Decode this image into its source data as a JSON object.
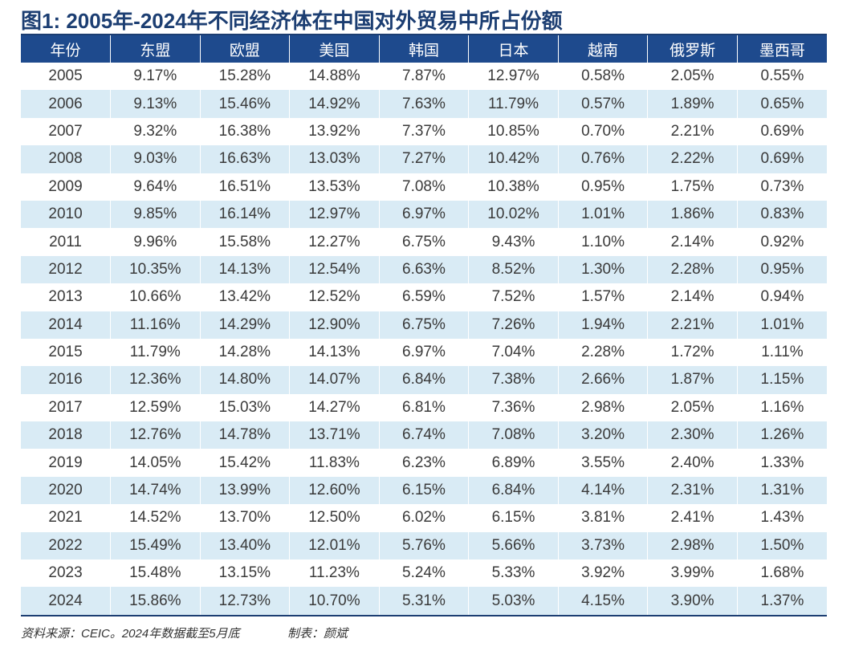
{
  "chart_data": {
    "type": "table",
    "title": "图1: 2005年-2024年不同经济体在中国对外贸易中所占份额",
    "columns": [
      "年份",
      "东盟",
      "欧盟",
      "美国",
      "韩国",
      "日本",
      "越南",
      "俄罗斯",
      "墨西哥"
    ],
    "rows": [
      [
        "2005",
        "9.17%",
        "15.28%",
        "14.88%",
        "7.87%",
        "12.97%",
        "0.58%",
        "2.05%",
        "0.55%"
      ],
      [
        "2006",
        "9.13%",
        "15.46%",
        "14.92%",
        "7.63%",
        "11.79%",
        "0.57%",
        "1.89%",
        "0.65%"
      ],
      [
        "2007",
        "9.32%",
        "16.38%",
        "13.92%",
        "7.37%",
        "10.85%",
        "0.70%",
        "2.21%",
        "0.69%"
      ],
      [
        "2008",
        "9.03%",
        "16.63%",
        "13.03%",
        "7.27%",
        "10.42%",
        "0.76%",
        "2.22%",
        "0.69%"
      ],
      [
        "2009",
        "9.64%",
        "16.51%",
        "13.53%",
        "7.08%",
        "10.38%",
        "0.95%",
        "1.75%",
        "0.73%"
      ],
      [
        "2010",
        "9.85%",
        "16.14%",
        "12.97%",
        "6.97%",
        "10.02%",
        "1.01%",
        "1.86%",
        "0.83%"
      ],
      [
        "2011",
        "9.96%",
        "15.58%",
        "12.27%",
        "6.75%",
        "9.43%",
        "1.10%",
        "2.14%",
        "0.92%"
      ],
      [
        "2012",
        "10.35%",
        "14.13%",
        "12.54%",
        "6.63%",
        "8.52%",
        "1.30%",
        "2.28%",
        "0.95%"
      ],
      [
        "2013",
        "10.66%",
        "13.42%",
        "12.52%",
        "6.59%",
        "7.52%",
        "1.57%",
        "2.14%",
        "0.94%"
      ],
      [
        "2014",
        "11.16%",
        "14.29%",
        "12.90%",
        "6.75%",
        "7.26%",
        "1.94%",
        "2.21%",
        "1.01%"
      ],
      [
        "2015",
        "11.79%",
        "14.28%",
        "14.13%",
        "6.97%",
        "7.04%",
        "2.28%",
        "1.72%",
        "1.11%"
      ],
      [
        "2016",
        "12.36%",
        "14.80%",
        "14.07%",
        "6.84%",
        "7.38%",
        "2.66%",
        "1.87%",
        "1.15%"
      ],
      [
        "2017",
        "12.59%",
        "15.03%",
        "14.27%",
        "6.81%",
        "7.36%",
        "2.98%",
        "2.05%",
        "1.16%"
      ],
      [
        "2018",
        "12.76%",
        "14.78%",
        "13.71%",
        "6.74%",
        "7.08%",
        "3.20%",
        "2.30%",
        "1.26%"
      ],
      [
        "2019",
        "14.05%",
        "15.42%",
        "11.83%",
        "6.23%",
        "6.89%",
        "3.55%",
        "2.40%",
        "1.33%"
      ],
      [
        "2020",
        "14.74%",
        "13.99%",
        "12.60%",
        "6.15%",
        "6.84%",
        "4.14%",
        "2.31%",
        "1.31%"
      ],
      [
        "2021",
        "14.52%",
        "13.70%",
        "12.50%",
        "6.02%",
        "6.15%",
        "3.81%",
        "2.41%",
        "1.43%"
      ],
      [
        "2022",
        "15.49%",
        "13.40%",
        "12.01%",
        "5.76%",
        "5.66%",
        "3.73%",
        "2.98%",
        "1.50%"
      ],
      [
        "2023",
        "15.48%",
        "13.15%",
        "11.23%",
        "5.24%",
        "5.33%",
        "3.92%",
        "3.99%",
        "1.68%"
      ],
      [
        "2024",
        "15.86%",
        "12.73%",
        "10.70%",
        "5.31%",
        "5.03%",
        "4.15%",
        "3.90%",
        "1.37%"
      ]
    ],
    "colors": {
      "header_bg": "#1e4a8d",
      "title": "#1c3e72",
      "stripe": "#d9ebf5"
    }
  },
  "footer": {
    "source": "资料来源：CEIC。2024年数据截至5月底",
    "author": "制表：颜斌"
  }
}
